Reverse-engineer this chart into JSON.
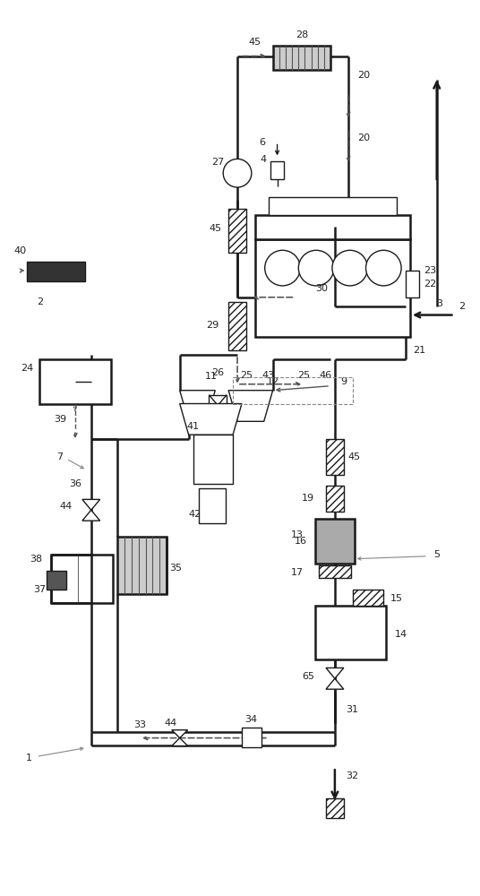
{
  "bg_color": "#ffffff",
  "lc": "#1a1a1a",
  "gray": "#888888",
  "dark_gray": "#555555",
  "med_gray": "#aaaaaa",
  "figsize": [
    5.36,
    10.0
  ],
  "dpi": 100
}
